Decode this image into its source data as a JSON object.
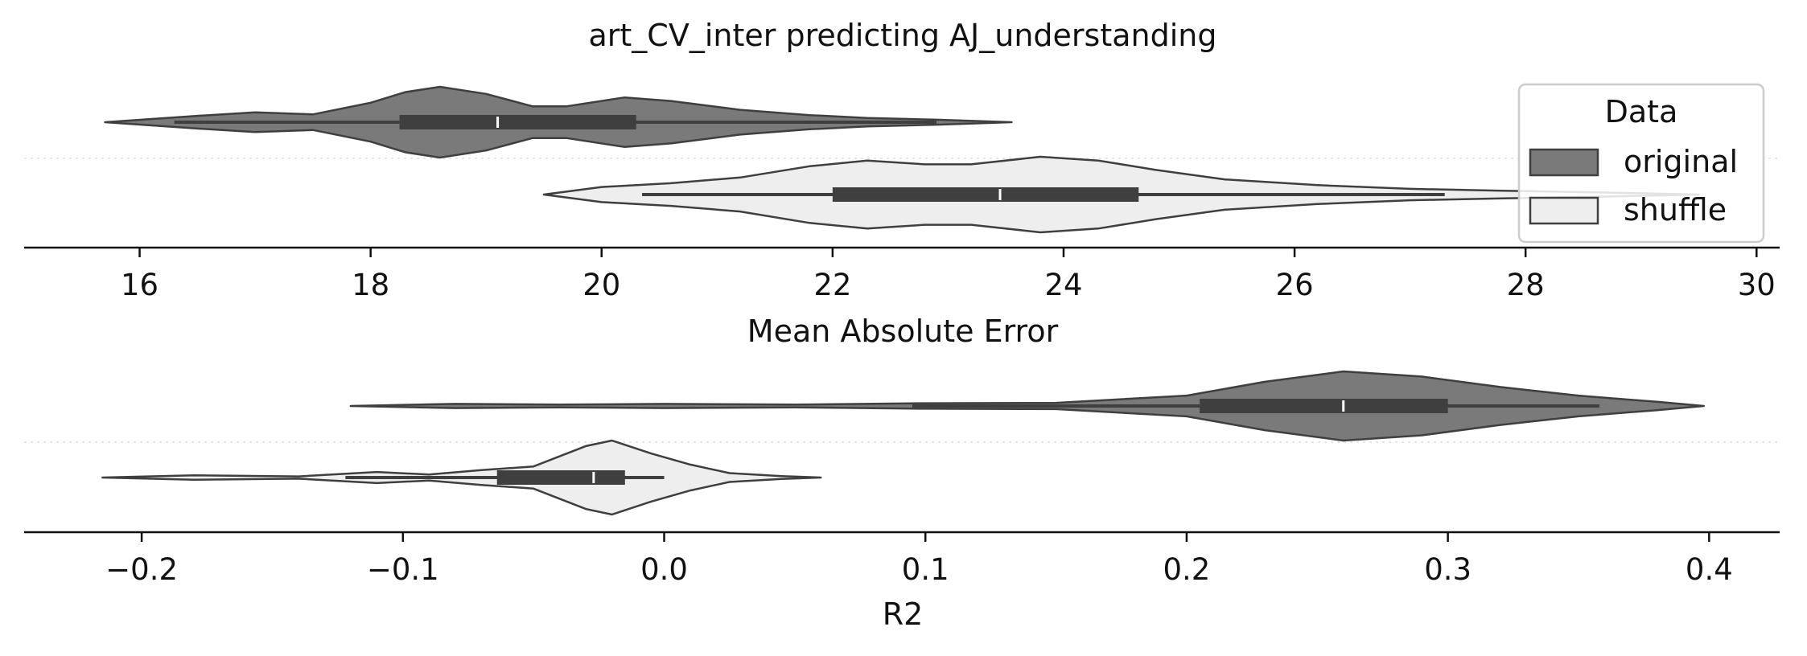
{
  "title": "art_CV_inter predicting AJ_understanding",
  "legend": {
    "title": "Data",
    "placement": "top-right",
    "entries": [
      {
        "label": "original",
        "color": "#7a7a7a"
      },
      {
        "label": "shuffle",
        "color": "#eeeeee"
      }
    ]
  },
  "colors": {
    "original": "#7a7a7a",
    "shuffle": "#eeeeee",
    "outline": "#3f3f3f",
    "axis": "#111111"
  },
  "chart_data": [
    {
      "type": "violin",
      "orientation": "horizontal",
      "xlabel": "Mean Absolute Error",
      "xlim": [
        15,
        30.2
      ],
      "xticks": [
        16,
        18,
        20,
        22,
        24,
        26,
        28,
        30
      ],
      "xtick_labels": [
        "16",
        "18",
        "20",
        "22",
        "24",
        "26",
        "28",
        "30"
      ],
      "grid": "dotted line between violins",
      "series": [
        {
          "name": "original",
          "range": [
            15.7,
            23.55
          ],
          "whiskers": [
            16.3,
            22.9
          ],
          "box": [
            18.25,
            20.3
          ],
          "median": 19.1,
          "density": [
            [
              15.7,
              0.0
            ],
            [
              16.5,
              0.18
            ],
            [
              17.0,
              0.28
            ],
            [
              17.5,
              0.22
            ],
            [
              18.0,
              0.55
            ],
            [
              18.3,
              0.85
            ],
            [
              18.6,
              1.0
            ],
            [
              19.0,
              0.8
            ],
            [
              19.4,
              0.45
            ],
            [
              19.7,
              0.45
            ],
            [
              20.2,
              0.7
            ],
            [
              20.6,
              0.6
            ],
            [
              21.2,
              0.35
            ],
            [
              21.8,
              0.2
            ],
            [
              22.3,
              0.12
            ],
            [
              22.9,
              0.07
            ],
            [
              23.55,
              0.0
            ]
          ]
        },
        {
          "name": "shuffle",
          "range": [
            19.5,
            29.5
          ],
          "whiskers": [
            20.35,
            27.3
          ],
          "box": [
            22.0,
            24.65
          ],
          "median": 23.45,
          "density": [
            [
              19.5,
              0.0
            ],
            [
              20.0,
              0.2
            ],
            [
              20.6,
              0.3
            ],
            [
              21.2,
              0.45
            ],
            [
              21.8,
              0.75
            ],
            [
              22.3,
              0.9
            ],
            [
              22.8,
              0.8
            ],
            [
              23.2,
              0.8
            ],
            [
              23.8,
              1.0
            ],
            [
              24.3,
              0.9
            ],
            [
              24.8,
              0.65
            ],
            [
              25.4,
              0.4
            ],
            [
              26.2,
              0.25
            ],
            [
              27.0,
              0.15
            ],
            [
              27.8,
              0.1
            ],
            [
              28.6,
              0.06
            ],
            [
              29.5,
              0.0
            ]
          ]
        }
      ]
    },
    {
      "type": "violin",
      "orientation": "horizontal",
      "xlabel": "R2",
      "xlim": [
        -0.245,
        0.427
      ],
      "xticks": [
        -0.2,
        -0.1,
        0.0,
        0.1,
        0.2,
        0.3,
        0.4
      ],
      "xtick_labels": [
        "−0.2",
        "−0.1",
        "0.0",
        "0.1",
        "0.2",
        "0.3",
        "0.4"
      ],
      "grid": "dotted line between violins",
      "series": [
        {
          "name": "original",
          "range": [
            -0.12,
            0.398
          ],
          "whiskers": [
            0.095,
            0.358
          ],
          "box": [
            0.205,
            0.3
          ],
          "median": 0.26,
          "density": [
            [
              -0.12,
              0.0
            ],
            [
              -0.08,
              0.06
            ],
            [
              -0.04,
              0.04
            ],
            [
              0.0,
              0.06
            ],
            [
              0.05,
              0.04
            ],
            [
              0.1,
              0.08
            ],
            [
              0.15,
              0.09
            ],
            [
              0.2,
              0.3
            ],
            [
              0.23,
              0.7
            ],
            [
              0.26,
              1.0
            ],
            [
              0.29,
              0.85
            ],
            [
              0.32,
              0.55
            ],
            [
              0.35,
              0.3
            ],
            [
              0.38,
              0.12
            ],
            [
              0.398,
              0.0
            ]
          ]
        },
        {
          "name": "shuffle",
          "range": [
            -0.215,
            0.06
          ],
          "whiskers": [
            -0.122,
            0.0
          ],
          "box": [
            -0.064,
            -0.015
          ],
          "median": -0.027,
          "density": [
            [
              -0.215,
              0.0
            ],
            [
              -0.18,
              0.06
            ],
            [
              -0.14,
              0.03
            ],
            [
              -0.11,
              0.15
            ],
            [
              -0.09,
              0.08
            ],
            [
              -0.07,
              0.2
            ],
            [
              -0.05,
              0.3
            ],
            [
              -0.03,
              0.85
            ],
            [
              -0.02,
              1.0
            ],
            [
              -0.005,
              0.65
            ],
            [
              0.01,
              0.35
            ],
            [
              0.025,
              0.12
            ],
            [
              0.045,
              0.04
            ],
            [
              0.06,
              0.0
            ]
          ]
        }
      ]
    }
  ]
}
